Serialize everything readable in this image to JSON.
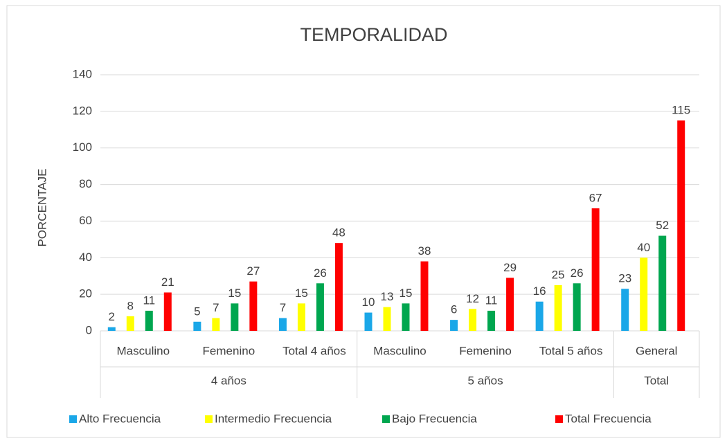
{
  "chart_data": {
    "type": "bar",
    "title": "TEMPORALIDAD",
    "y_label": "PORCENTAJE",
    "categories": [
      "Masculino",
      "Femenino",
      "Total 4 años",
      "Masculino",
      "Femenino",
      "Total 5 años",
      "General"
    ],
    "groups": [
      {
        "label": "4 años",
        "span": 3
      },
      {
        "label": "5 años",
        "span": 3
      },
      {
        "label": "Total",
        "span": 1
      }
    ],
    "series": [
      {
        "name": "Alto Frecuencia",
        "color": "#1aa7e8",
        "values": [
          2,
          5,
          7,
          10,
          6,
          16,
          23
        ]
      },
      {
        "name": "Intermedio Frecuencia",
        "color": "#ffff00",
        "values": [
          8,
          7,
          15,
          13,
          12,
          25,
          40
        ]
      },
      {
        "name": "Bajo Frecuencia",
        "color": "#00a64f",
        "values": [
          11,
          15,
          26,
          15,
          11,
          26,
          52
        ]
      },
      {
        "name": "Total Frecuencia",
        "color": "#ff0000",
        "values": [
          21,
          27,
          48,
          38,
          29,
          67,
          115
        ]
      }
    ],
    "ylim": [
      0,
      140
    ],
    "yticks": [
      0,
      20,
      40,
      60,
      80,
      100,
      120,
      140
    ],
    "grid": true,
    "legend": "bottom"
  }
}
